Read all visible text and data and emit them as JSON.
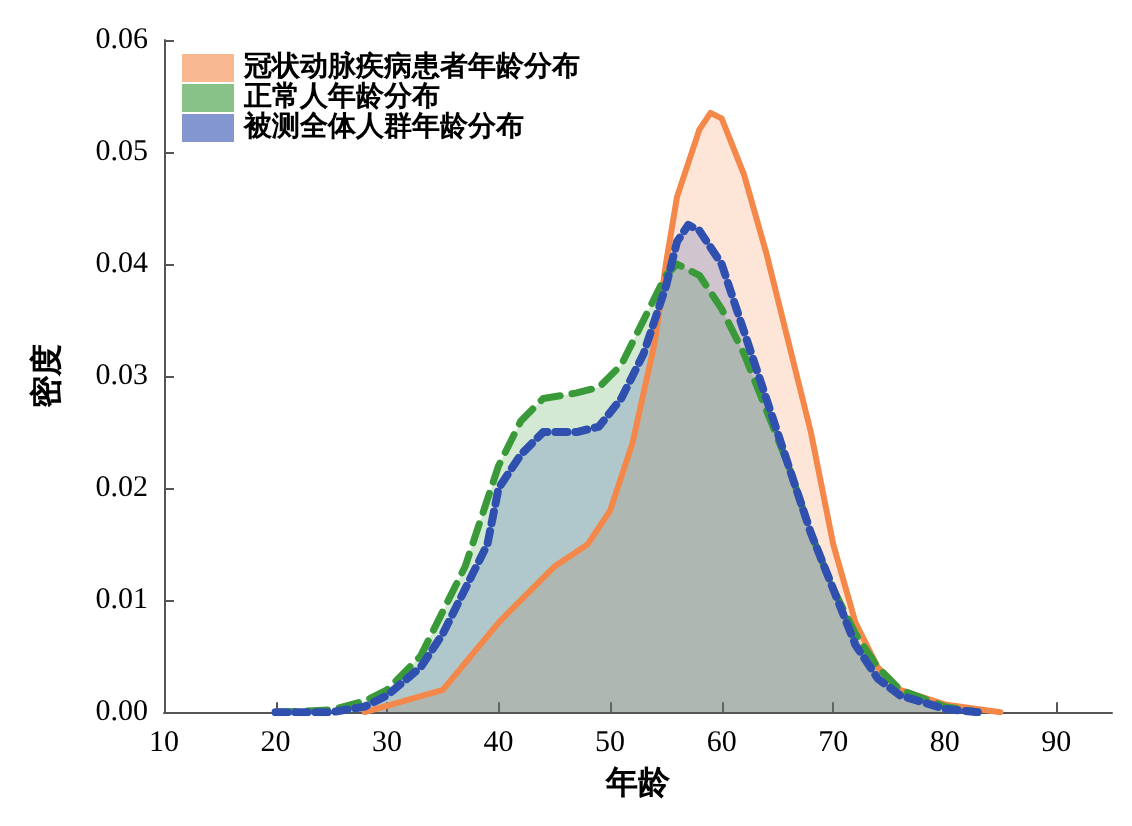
{
  "chart_data": {
    "type": "area",
    "xlabel": "年龄",
    "ylabel": "密度",
    "xlim": [
      10,
      95
    ],
    "xticks": [
      10,
      20,
      30,
      40,
      50,
      60,
      70,
      80,
      90
    ],
    "ylim": [
      0,
      0.06
    ],
    "yticks": [
      {
        "value": 0,
        "label": "0.00"
      },
      {
        "value": 0.01,
        "label": "0.01"
      },
      {
        "value": 0.02,
        "label": "0.02"
      },
      {
        "value": 0.03,
        "label": "0.03"
      },
      {
        "value": 0.04,
        "label": "0.04"
      },
      {
        "value": 0.05,
        "label": "0.05"
      },
      {
        "value": 0.06,
        "label": "0.06"
      }
    ],
    "grid": false,
    "legend": "top left",
    "marker": "none",
    "series": [
      {
        "name": "冠状动脉疾病患者年龄分布",
        "color": "#f4884a",
        "line_style": "solid",
        "x": [
          28,
          35,
          40,
          45,
          48,
          50,
          52,
          54,
          55,
          56,
          58,
          59,
          60,
          62,
          64,
          66,
          68,
          70,
          72,
          74,
          76,
          80,
          85
        ],
        "values": [
          0,
          0.002,
          0.008,
          0.013,
          0.015,
          0.018,
          0.024,
          0.033,
          0.04,
          0.046,
          0.052,
          0.0535,
          0.053,
          0.048,
          0.041,
          0.033,
          0.025,
          0.015,
          0.008,
          0.004,
          0.002,
          0.0007,
          0
        ]
      },
      {
        "name": "正常人年龄分布",
        "color": "#3a9a3a",
        "line_style": "dashed",
        "x": [
          20,
          25,
          28,
          30,
          33,
          35,
          37,
          38,
          40,
          42,
          44,
          47,
          49,
          51,
          53,
          55,
          56,
          58,
          60,
          62,
          64,
          66,
          68,
          70,
          72,
          74,
          76,
          80,
          83
        ],
        "values": [
          0,
          0.0002,
          0.001,
          0.002,
          0.005,
          0.009,
          0.013,
          0.016,
          0.022,
          0.026,
          0.028,
          0.0285,
          0.029,
          0.031,
          0.035,
          0.039,
          0.04,
          0.039,
          0.036,
          0.032,
          0.027,
          0.022,
          0.016,
          0.011,
          0.007,
          0.004,
          0.002,
          0.0005,
          0
        ]
      },
      {
        "name": "被测全体人群年龄分布",
        "color": "#3050b0",
        "line_style": "dotted",
        "x": [
          20,
          25,
          28,
          30,
          33,
          35,
          37,
          39,
          40,
          42,
          44,
          47,
          49,
          51,
          53,
          55,
          56,
          57,
          58,
          60,
          62,
          64,
          66,
          68,
          70,
          72,
          74,
          76,
          80,
          83
        ],
        "values": [
          0,
          0,
          0.0005,
          0.0015,
          0.004,
          0.007,
          0.011,
          0.015,
          0.02,
          0.023,
          0.025,
          0.025,
          0.0255,
          0.028,
          0.032,
          0.038,
          0.042,
          0.0435,
          0.043,
          0.04,
          0.034,
          0.028,
          0.022,
          0.016,
          0.011,
          0.006,
          0.003,
          0.0015,
          0.0003,
          0
        ]
      }
    ]
  }
}
